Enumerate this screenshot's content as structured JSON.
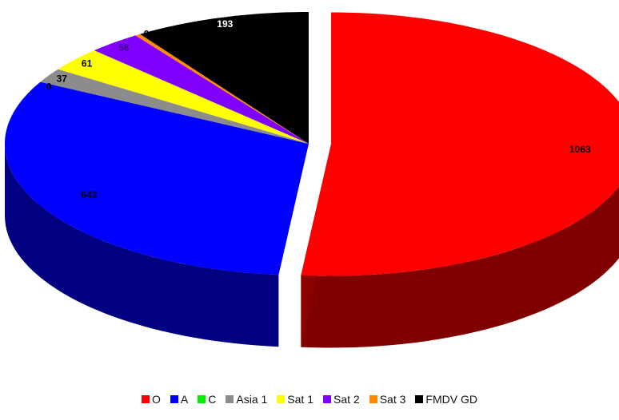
{
  "chart_data": {
    "type": "pie",
    "style": "3d-exploded",
    "categories": [
      "O",
      "A",
      "C",
      "Asia 1",
      "Sat 1",
      "Sat 2",
      "Sat 3",
      "FMDV GD"
    ],
    "values": [
      1063,
      643,
      0,
      37,
      61,
      58,
      6,
      193
    ],
    "data_labels": [
      "1063",
      "643",
      "0",
      "37",
      "61",
      "58",
      "6",
      "193"
    ],
    "colors": [
      "#ff0000",
      "#0000ff",
      "#00aa00",
      "#8c8c8c",
      "#ffff00",
      "#8000ff",
      "#ff8c00",
      "#000000"
    ],
    "legend_position": "bottom",
    "title": "",
    "xlabel": "",
    "ylabel": ""
  }
}
